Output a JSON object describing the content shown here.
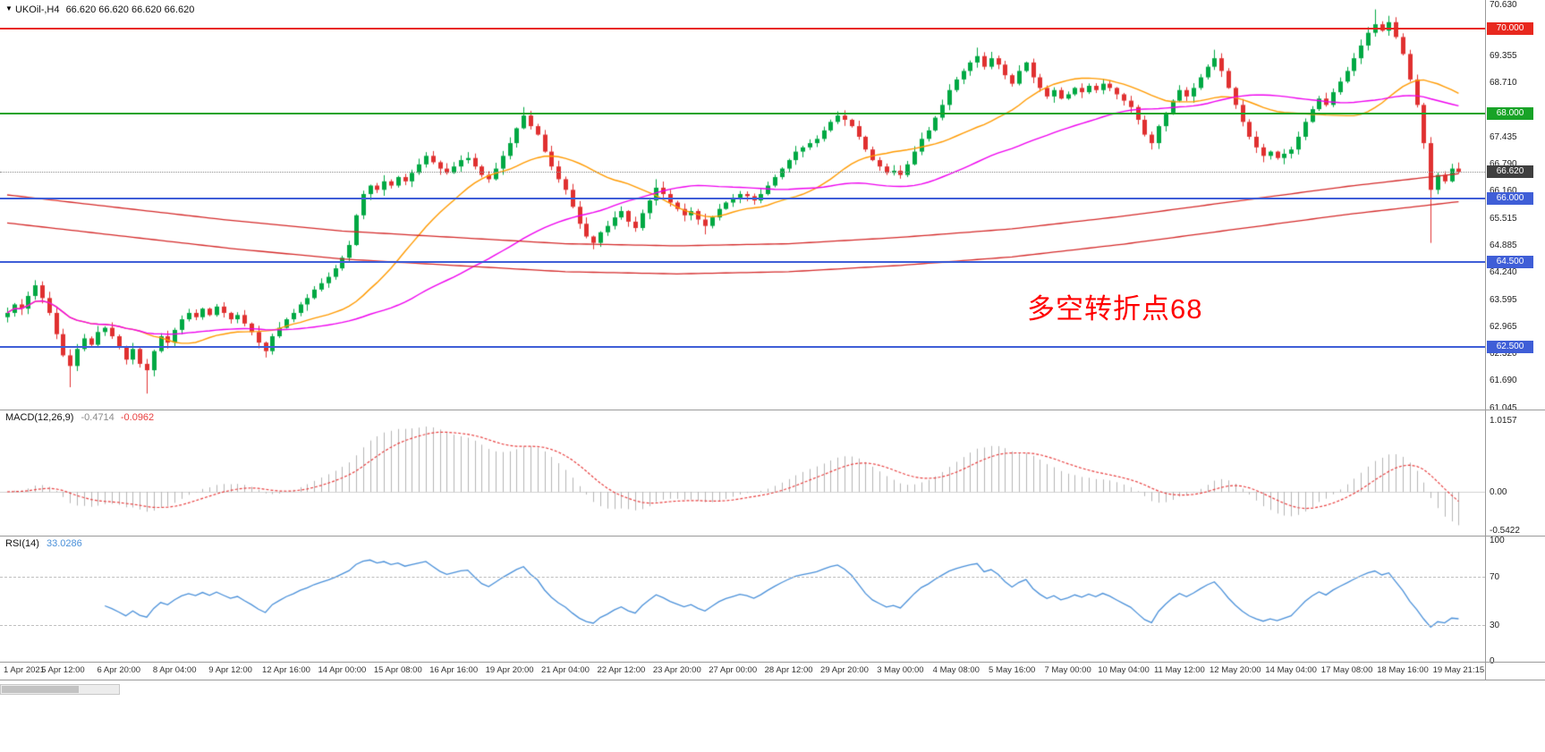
{
  "window": {
    "symbol_period": "UKOil-,H4",
    "ohlc": "66.620 66.620 66.620 66.620"
  },
  "chart_data": {
    "type": "candlestick",
    "symbol": "UKOil-",
    "timeframe": "H4",
    "current_price": 66.62,
    "price_axis": {
      "min": 61.045,
      "max": 70.63,
      "ticks": [
        "70.630",
        "69.355",
        "68.710",
        "67.435",
        "66.790",
        "66.160",
        "65.515",
        "64.885",
        "64.240",
        "63.595",
        "62.965",
        "62.320",
        "61.690",
        "61.045"
      ]
    },
    "hlines": [
      {
        "price": "70.000",
        "color": "#e8281e"
      },
      {
        "price": "68.000",
        "color": "#18a327"
      },
      {
        "price": "66.000",
        "color": "#3f5ed7"
      },
      {
        "price": "64.500",
        "color": "#3f5ed7"
      },
      {
        "price": "62.500",
        "color": "#3f5ed7"
      }
    ],
    "price_label": {
      "value": "66.620",
      "box_color": "#3f3f3f"
    },
    "annotation": {
      "text": "多空转折点68",
      "color": "#ff0000"
    },
    "style": {
      "up_color": "#00a843",
      "down_color": "#e03030",
      "background": "#ffffff"
    },
    "overlays": {
      "ma_fast": {
        "period": 20,
        "color": "#ff9a00"
      },
      "ma_slow": {
        "period": 50,
        "color": "#ee00ee"
      },
      "envelope": {
        "color": "#d42a2a",
        "half_width": 0.33,
        "mid_anchors": [
          [
            0,
            65.75
          ],
          [
            16,
            65.45
          ],
          [
            32,
            65.15
          ],
          [
            48,
            64.9
          ],
          [
            64,
            64.75
          ],
          [
            80,
            64.6
          ],
          [
            96,
            64.55
          ],
          [
            112,
            64.6
          ],
          [
            128,
            64.75
          ],
          [
            144,
            64.95
          ],
          [
            160,
            65.25
          ],
          [
            176,
            65.6
          ],
          [
            192,
            65.95
          ],
          [
            208,
            66.25
          ]
        ]
      }
    },
    "candles": {
      "first_open": 63.2,
      "closes": [
        63.3,
        63.5,
        63.4,
        63.7,
        63.95,
        63.65,
        63.3,
        62.8,
        62.3,
        62.05,
        62.45,
        62.7,
        62.55,
        62.85,
        62.95,
        62.75,
        62.5,
        62.2,
        62.45,
        62.1,
        61.95,
        62.4,
        62.75,
        62.6,
        62.9,
        63.15,
        63.3,
        63.2,
        63.4,
        63.25,
        63.45,
        63.3,
        63.15,
        63.25,
        63.05,
        62.85,
        62.6,
        62.4,
        62.75,
        62.95,
        63.15,
        63.3,
        63.5,
        63.65,
        63.85,
        64.0,
        64.15,
        64.35,
        64.6,
        64.9,
        65.6,
        66.1,
        66.3,
        66.2,
        66.4,
        66.3,
        66.5,
        66.4,
        66.6,
        66.8,
        67.0,
        66.85,
        66.7,
        66.6,
        66.75,
        66.9,
        66.95,
        66.75,
        66.55,
        66.45,
        66.7,
        67.0,
        67.3,
        67.65,
        67.95,
        67.7,
        67.5,
        67.1,
        66.75,
        66.45,
        66.2,
        65.8,
        65.4,
        65.1,
        64.95,
        65.2,
        65.35,
        65.55,
        65.7,
        65.45,
        65.3,
        65.65,
        65.95,
        66.25,
        66.1,
        65.9,
        65.75,
        65.6,
        65.7,
        65.5,
        65.35,
        65.55,
        65.75,
        65.9,
        66.0,
        66.1,
        66.05,
        65.95,
        66.1,
        66.3,
        66.5,
        66.7,
        66.9,
        67.1,
        67.2,
        67.3,
        67.4,
        67.6,
        67.8,
        67.95,
        67.85,
        67.7,
        67.45,
        67.15,
        66.9,
        66.75,
        66.6,
        66.65,
        66.55,
        66.8,
        67.1,
        67.4,
        67.6,
        67.9,
        68.2,
        68.55,
        68.8,
        69.0,
        69.2,
        69.35,
        69.1,
        69.3,
        69.15,
        68.9,
        68.7,
        69.0,
        69.2,
        68.85,
        68.6,
        68.4,
        68.55,
        68.35,
        68.45,
        68.6,
        68.5,
        68.65,
        68.55,
        68.7,
        68.6,
        68.45,
        68.3,
        68.15,
        67.85,
        67.5,
        67.3,
        67.7,
        68.0,
        68.3,
        68.55,
        68.4,
        68.6,
        68.85,
        69.1,
        69.3,
        69.0,
        68.6,
        68.2,
        67.8,
        67.45,
        67.2,
        67.0,
        67.1,
        66.95,
        67.05,
        67.15,
        67.45,
        67.8,
        68.1,
        68.35,
        68.2,
        68.5,
        68.75,
        69.0,
        69.3,
        69.6,
        69.9,
        70.1,
        69.95,
        70.15,
        69.8,
        69.4,
        68.8,
        68.2,
        67.3,
        66.2,
        66.55,
        66.4,
        66.7,
        66.62
      ],
      "wick_overrides": {
        "9": {
          "low": 61.55
        },
        "20": {
          "low": 61.4
        },
        "37": {
          "low": 62.25
        },
        "74": {
          "high": 68.15
        },
        "84": {
          "low": 64.8
        },
        "93": {
          "high": 66.45
        },
        "100": {
          "low": 65.15
        },
        "119": {
          "high": 68.05
        },
        "139": {
          "high": 69.55
        },
        "141": {
          "high": 69.45
        },
        "164": {
          "low": 67.15
        },
        "173": {
          "high": 69.5
        },
        "180": {
          "low": 66.85
        },
        "196": {
          "high": 70.45
        },
        "198": {
          "high": 70.3
        },
        "204": {
          "low": 64.95
        }
      }
    },
    "time_labels": [
      "1 Apr 2021",
      "5 Apr 12:00",
      "6 Apr 20:00",
      "8 Apr 04:00",
      "9 Apr 12:00",
      "12 Apr 16:00",
      "14 Apr 00:00",
      "15 Apr 08:00",
      "16 Apr 16:00",
      "19 Apr 20:00",
      "21 Apr 04:00",
      "22 Apr 12:00",
      "23 Apr 20:00",
      "27 Apr 00:00",
      "28 Apr 12:00",
      "29 Apr 20:00",
      "3 May 00:00",
      "4 May 08:00",
      "5 May 16:00",
      "7 May 00:00",
      "10 May 04:00",
      "11 May 12:00",
      "12 May 20:00",
      "14 May 04:00",
      "17 May 08:00",
      "18 May 16:00",
      "19 May 21:15"
    ],
    "indicators": [
      {
        "name": "MACD",
        "label": "MACD(12,26,9)",
        "value_main": "-0.4714",
        "value_signal": "-0.0962",
        "axis": [
          "1.0157",
          "0.00",
          "-0.5422"
        ],
        "histogram_color": "#b4b4b4",
        "signal_color": "#e84040"
      },
      {
        "name": "RSI",
        "label": "RSI(14)",
        "value": "33.0286",
        "levels": [
          70,
          30
        ],
        "axis": [
          "100",
          "70",
          "30",
          "0"
        ],
        "color": "#4a90d9"
      }
    ]
  }
}
